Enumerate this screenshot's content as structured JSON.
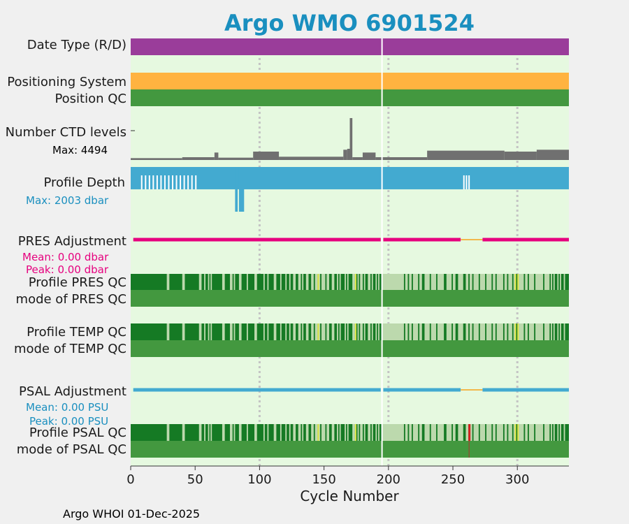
{
  "chart_data": {
    "type": "timeline",
    "title": "Argo WMO 6901524",
    "xlabel": "Cycle Number",
    "xlim": [
      0,
      340
    ],
    "xticks": [
      0,
      50,
      100,
      150,
      200,
      250,
      300
    ],
    "grid_x": [
      100,
      200,
      300
    ],
    "separator_cycle": 195,
    "footer": "Argo WHOI 01-Dec-2025",
    "colors": {
      "title": "#1a8fbf",
      "background": "#e6f9e0",
      "purple": "#9a3d9a",
      "orange": "#ffb340",
      "qc_good": "#43983f",
      "qc_dark": "#157a24",
      "qc_light": "#bcd9ad",
      "qc_yellow": "#e4e84a",
      "qc_red": "#d62020",
      "ctd": "#707070",
      "depth": "#43aad0",
      "pres_adj": "#e6007e",
      "psal_adj": "#43aad0",
      "gap": "#f2b84b"
    },
    "rows": {
      "date_type": {
        "label": "Date Type (R/D)",
        "values": [
          "D"
        ]
      },
      "positioning": {
        "label": "Positioning System",
        "values": [
          "GPS"
        ]
      },
      "position_qc": {
        "label": "Position QC",
        "values": [
          1
        ]
      },
      "ctd_levels": {
        "label": "Number CTD levels",
        "max_text": "Max: 4494",
        "max": 4494,
        "segments": [
          {
            "from": 0,
            "to": 40,
            "level": 200
          },
          {
            "from": 40,
            "to": 65,
            "level": 300
          },
          {
            "from": 65,
            "to": 68,
            "level": 800
          },
          {
            "from": 68,
            "to": 95,
            "level": 250
          },
          {
            "from": 95,
            "to": 115,
            "level": 900
          },
          {
            "from": 115,
            "to": 165,
            "level": 350
          },
          {
            "from": 165,
            "to": 168,
            "level": 1100
          },
          {
            "from": 168,
            "to": 170,
            "level": 1200
          },
          {
            "from": 170,
            "to": 172,
            "level": 4494
          },
          {
            "from": 172,
            "to": 180,
            "level": 300
          },
          {
            "from": 180,
            "to": 190,
            "level": 800
          },
          {
            "from": 190,
            "to": 230,
            "level": 300
          },
          {
            "from": 230,
            "to": 290,
            "level": 1000
          },
          {
            "from": 290,
            "to": 315,
            "level": 900
          },
          {
            "from": 315,
            "to": 340,
            "level": 1100
          }
        ]
      },
      "profile_depth": {
        "label": "Profile Depth",
        "max_text": "Max: 2003 dbar",
        "max": 2003,
        "base_depth": 1000,
        "deep_segments": [
          {
            "from": 81,
            "to": 83,
            "depth": 2003
          },
          {
            "from": 84,
            "to": 88,
            "depth": 2003
          }
        ]
      },
      "pres_adj": {
        "label": "PRES Adjustment",
        "mean_text": "Mean: 0.00 dbar",
        "peak_text": "Peak: 0.00 dbar",
        "segments": [
          [
            2,
            194
          ],
          [
            196,
            256
          ],
          [
            273,
            340
          ]
        ],
        "gaps": [
          [
            256,
            273
          ]
        ]
      },
      "profile_pres_qc": {
        "label": "Profile PRES QC"
      },
      "mode_pres_qc": {
        "label": "mode of PRES QC"
      },
      "profile_temp_qc": {
        "label": "Profile TEMP QC"
      },
      "mode_temp_qc": {
        "label": "mode of TEMP QC"
      },
      "psal_adj": {
        "label": "PSAL Adjustment",
        "mean_text": "Mean: 0.00 PSU",
        "peak_text": "Peak: 0.00 PSU",
        "segments": [
          [
            2,
            194
          ],
          [
            196,
            256
          ],
          [
            273,
            340
          ]
        ],
        "gaps": [
          [
            256,
            273
          ]
        ]
      },
      "profile_psal_qc": {
        "label": "Profile PSAL QC"
      },
      "mode_psal_qc": {
        "label": "mode of PSAL QC"
      }
    },
    "qc_stripes": {
      "light_ranges": [
        [
          28,
          30
        ],
        [
          40,
          42
        ],
        [
          53,
          55
        ],
        [
          57,
          58
        ],
        [
          60,
          61
        ],
        [
          62,
          63
        ],
        [
          71,
          73
        ],
        [
          77,
          79
        ],
        [
          80,
          81
        ],
        [
          84,
          86
        ],
        [
          90,
          91
        ],
        [
          96,
          98
        ],
        [
          103,
          104
        ],
        [
          106,
          107
        ],
        [
          111,
          113
        ],
        [
          116,
          117
        ],
        [
          120,
          121
        ],
        [
          123,
          124
        ],
        [
          126,
          128
        ],
        [
          130,
          132
        ],
        [
          133,
          134
        ],
        [
          136,
          138
        ],
        [
          140,
          142
        ],
        [
          143,
          145
        ],
        [
          146,
          147
        ],
        [
          148,
          151
        ],
        [
          152,
          154
        ],
        [
          156,
          158
        ],
        [
          160,
          161
        ],
        [
          162,
          163
        ],
        [
          166,
          167
        ],
        [
          168,
          169
        ],
        [
          172,
          174
        ],
        [
          176,
          177
        ],
        [
          178,
          180
        ],
        [
          181,
          182
        ],
        [
          184,
          186
        ],
        [
          187,
          188
        ],
        [
          190,
          191
        ],
        [
          192,
          193
        ],
        [
          195,
          212
        ],
        [
          213,
          215
        ],
        [
          216,
          218
        ],
        [
          219,
          223
        ],
        [
          224,
          226
        ],
        [
          228,
          232
        ],
        [
          233,
          237
        ],
        [
          238,
          243
        ],
        [
          245,
          249
        ],
        [
          250,
          252
        ],
        [
          254,
          258
        ],
        [
          260,
          262
        ],
        [
          263,
          265
        ],
        [
          266,
          270
        ],
        [
          271,
          275
        ],
        [
          276,
          280
        ],
        [
          281,
          283
        ],
        [
          284,
          289
        ],
        [
          290,
          292
        ],
        [
          293,
          296
        ],
        [
          297,
          298
        ],
        [
          301,
          305
        ],
        [
          306,
          308
        ],
        [
          309,
          313
        ],
        [
          314,
          320
        ],
        [
          321,
          325
        ],
        [
          326,
          327
        ],
        [
          328,
          329
        ],
        [
          331,
          332
        ],
        [
          333,
          334
        ],
        [
          336,
          337
        ]
      ],
      "yellow_cycles": [
        145,
        174,
        298,
        300
      ],
      "red_cycles": [
        262
      ]
    }
  }
}
